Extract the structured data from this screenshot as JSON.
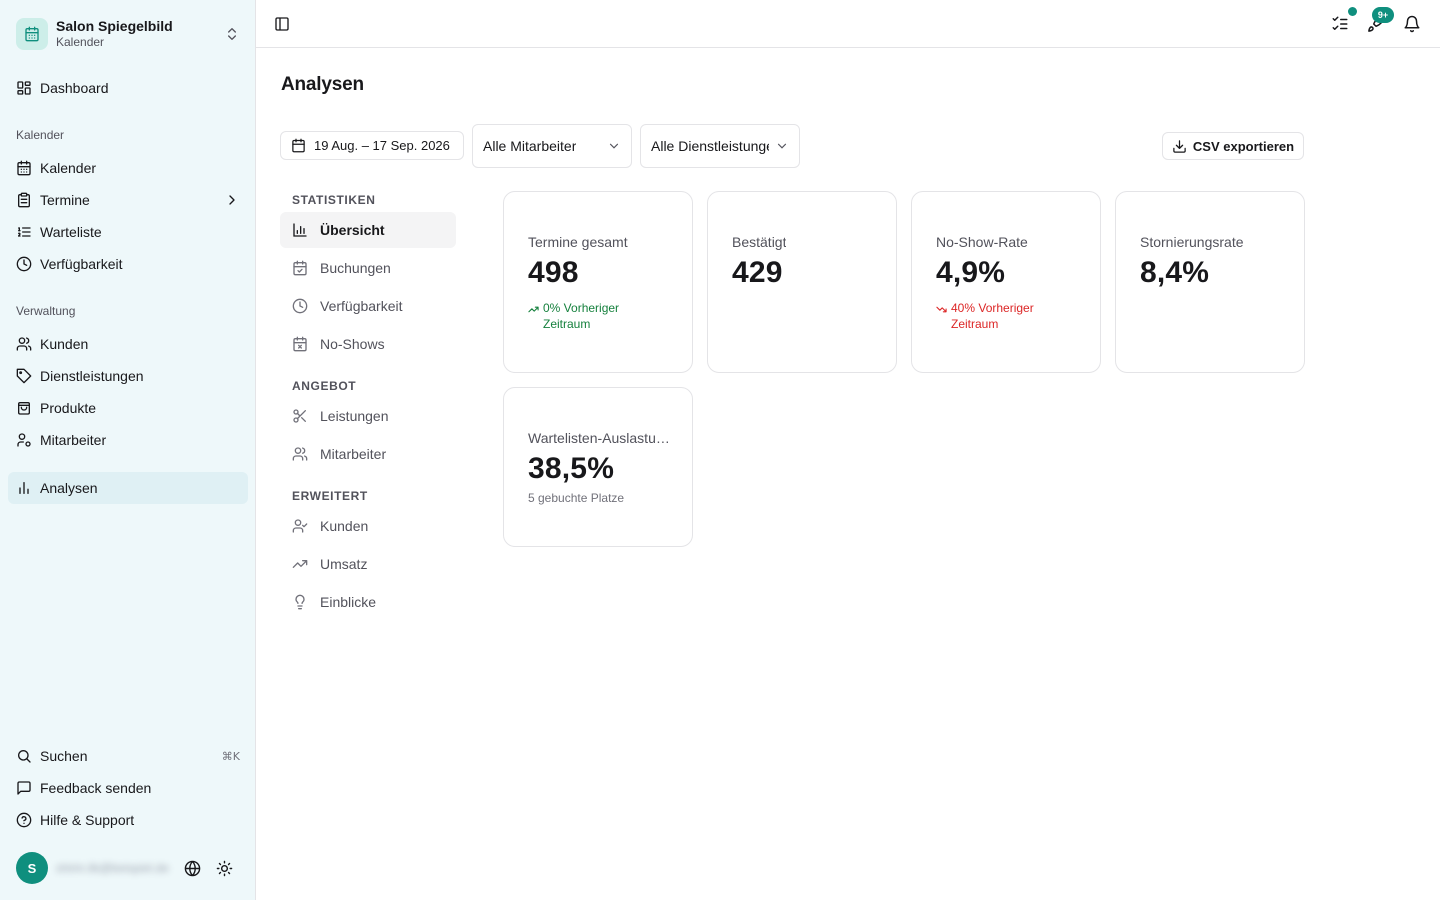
{
  "sidebar": {
    "brand": {
      "name": "Salon Spiegelbild",
      "subtitle": "Kalender",
      "logo_icon": "calendar-icon"
    },
    "top_items": [
      {
        "label": "Dashboard",
        "icon": "dashboard-icon"
      }
    ],
    "groups": [
      {
        "label": "Kalender",
        "items": [
          {
            "label": "Kalender",
            "icon": "calendar-icon"
          },
          {
            "label": "Termine",
            "icon": "clipboard-icon"
          },
          {
            "label": "Warteliste",
            "icon": "list-ordered-icon"
          },
          {
            "label": "Verfügbarkeit",
            "icon": "clock-icon"
          }
        ]
      },
      {
        "label": "Verwaltung",
        "items": [
          {
            "label": "Kunden",
            "icon": "users-icon"
          },
          {
            "label": "Dienstleistungen",
            "icon": "tag-icon"
          },
          {
            "label": "Produkte",
            "icon": "shopping-bag-icon"
          },
          {
            "label": "Mitarbeiter",
            "icon": "user-cog-icon"
          }
        ]
      }
    ],
    "active_item": {
      "label": "Analysen",
      "icon": "bar-chart-icon"
    },
    "footer_items": [
      {
        "label": "Suchen",
        "icon": "search-icon",
        "shortcut": "⌘K"
      },
      {
        "label": "Feedback senden",
        "icon": "message-square-icon"
      },
      {
        "label": "Hilfe & Support",
        "icon": "help-circle-icon"
      }
    ],
    "user": {
      "initial": "S",
      "email": "shirin.ilk@beispiel.de"
    }
  },
  "topbar": {
    "notification_badge_count": "9+",
    "icons": [
      "sidebar-toggle-icon",
      "tasks-icon",
      "rocket-icon",
      "bell-icon"
    ]
  },
  "main": {
    "title": "Analysen",
    "filters": {
      "date_range": "19 Aug. – 17 Sep. 2026",
      "staff": "Alle Mitarbeiter",
      "service": "Alle Dienstleistungen"
    },
    "export_label": "CSV exportieren",
    "sections": [
      {
        "label": "STATISTIKEN",
        "items": [
          {
            "label": "Übersicht",
            "icon": "bar-chart-icon"
          },
          {
            "label": "Buchungen",
            "icon": "calendar-check-icon"
          },
          {
            "label": "Verfügbarkeit",
            "icon": "clock-icon"
          },
          {
            "label": "No-Shows",
            "icon": "calendar-x-icon"
          }
        ]
      },
      {
        "label": "ANGEBOT",
        "items": [
          {
            "label": "Leistungen",
            "icon": "scissors-icon"
          },
          {
            "label": "Mitarbeiter",
            "icon": "users-icon"
          }
        ]
      },
      {
        "label": "ERWEITERT",
        "items": [
          {
            "label": "Kunden",
            "icon": "user-check-icon"
          },
          {
            "label": "Umsatz",
            "icon": "trending-up-icon"
          },
          {
            "label": "Einblicke",
            "icon": "lightbulb-icon"
          }
        ]
      }
    ],
    "active_section_item": "Übersicht",
    "kpis": [
      {
        "title": "Termine gesamt",
        "value": "498",
        "trend": {
          "direction": "up",
          "text": "0% Vorheriger Zeitraum",
          "line1": "0% Vorheriger",
          "line2": "Zeitraum"
        }
      },
      {
        "title": "Bestätigt",
        "value": "429"
      },
      {
        "title": "No-Show-Rate",
        "value": "4,9%",
        "trend": {
          "direction": "down",
          "text": "40% Vorheriger Zeitraum",
          "line1": "40% Vorheriger",
          "line2": "Zeitraum"
        }
      },
      {
        "title": "Stornierungsrate",
        "value": "8,4%"
      },
      {
        "title": "Wartelisten-Auslastung",
        "value": "38,5%",
        "subtitle": "5 gebuchte Platze"
      }
    ]
  },
  "colors": {
    "sidebar_bg": "#eef8fa",
    "accent": "#0f8f7e",
    "trend_up": "#15803d",
    "trend_down": "#dc2626"
  }
}
